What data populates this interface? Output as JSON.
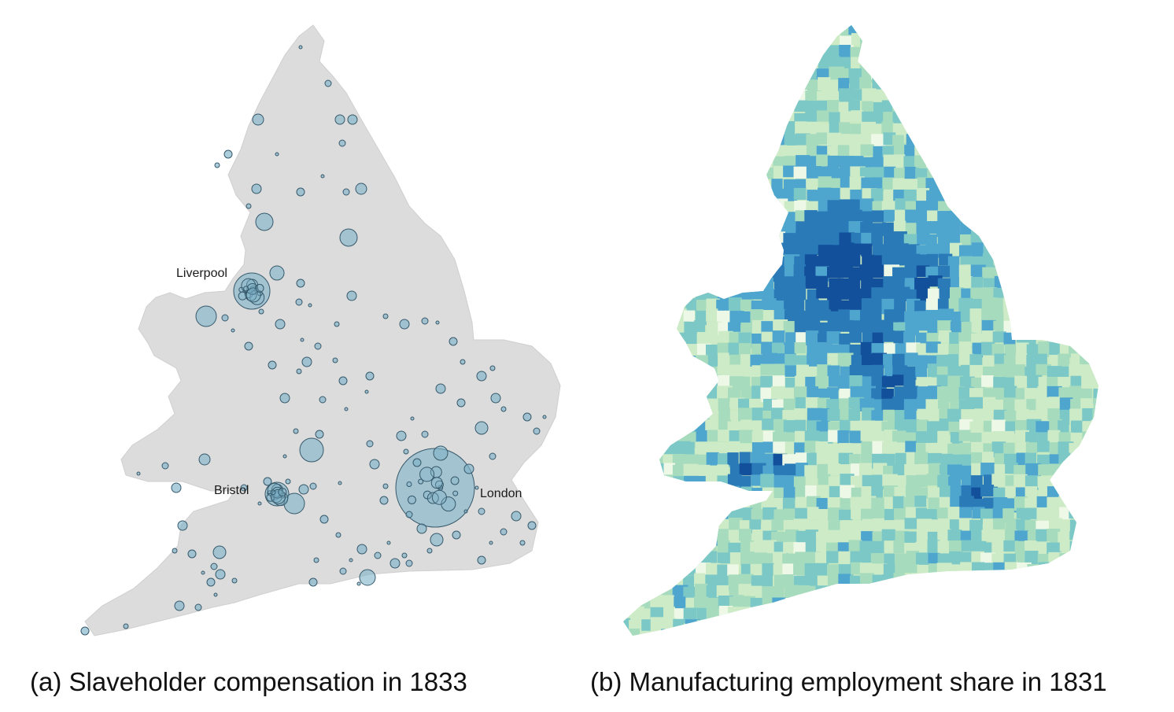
{
  "panel_a": {
    "caption": "(a) Slaveholder compensation in 1833",
    "colors": {
      "land": "#dcdcdc",
      "bubble_fill": "#7fb2c8",
      "bubble_stroke": "#36596b"
    },
    "city_labels": [
      "Liverpool",
      "Bristol",
      "London"
    ]
  },
  "panel_b": {
    "caption": "(b) Manufacturing employment share in 1831",
    "colors": {
      "palette": [
        "#eef8e6",
        "#cdebc6",
        "#a6dbbd",
        "#7cc8c7",
        "#4ea6cf",
        "#2a7ab8",
        "#13509c"
      ]
    }
  }
}
